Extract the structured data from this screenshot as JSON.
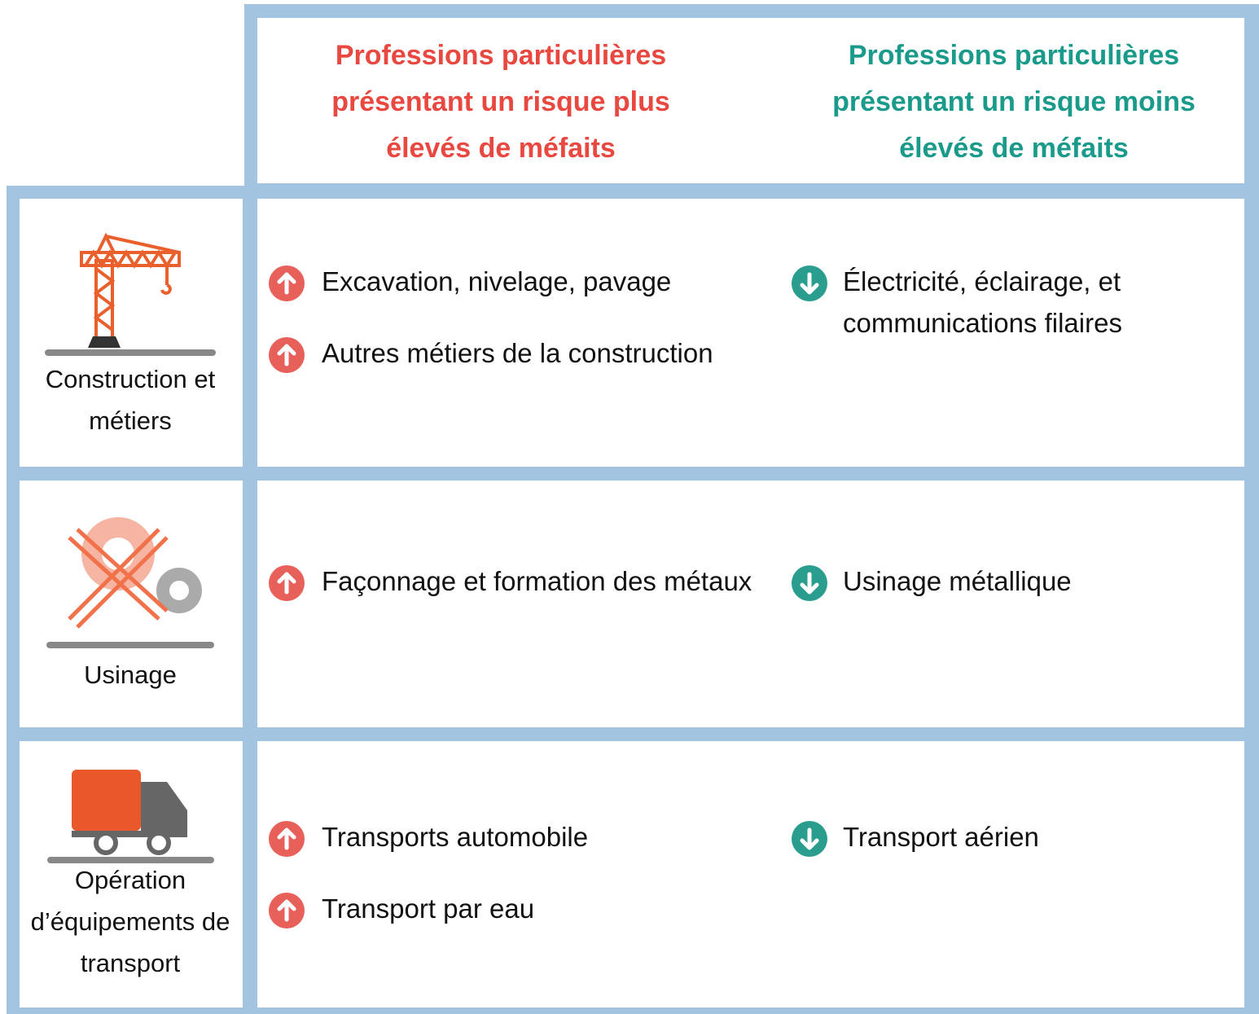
{
  "header": {
    "high": "Professions particulières présentant un risque plus élevés de méfaits",
    "low": "Professions particulières présentant un risque moins élevés de méfaits"
  },
  "rows": [
    {
      "category": "Construction et métiers",
      "high": [
        "Excavation, nivelage, pavage",
        "Autres métiers de la construction"
      ],
      "low": [
        "Électricité, éclairage, et communications filaires"
      ]
    },
    {
      "category": "Usinage",
      "high": [
        "Façonnage et formation des métaux"
      ],
      "low": [
        "Usinage métallique"
      ]
    },
    {
      "category": "Opération d’équipements de transport",
      "high": [
        "Transports automobile",
        "Transport par eau"
      ],
      "low": [
        "Transport aérien"
      ]
    }
  ]
}
